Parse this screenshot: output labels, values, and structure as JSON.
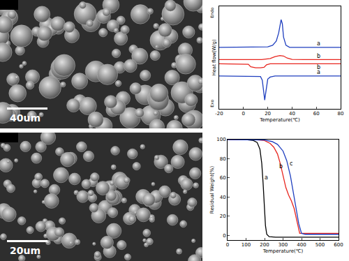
{
  "chart_data": [
    {
      "type": "line",
      "x_label": "Temperature(℃)",
      "y_label": "Heat flow(W/g)",
      "y_top_label": "Endo",
      "y_bottom_label": "Exo",
      "xlim": [
        -20,
        80
      ],
      "xticks": [
        -20,
        0,
        20,
        40,
        60,
        80
      ],
      "ylim": [
        0,
        10
      ],
      "yticks": [],
      "tick_labels": "x",
      "grid": false,
      "series": [
        {
          "color": "#1f3fbf",
          "x": [
            -20,
            0,
            10,
            20,
            24,
            27,
            29,
            30,
            31,
            32,
            33,
            35,
            38,
            45,
            60,
            80
          ],
          "values": [
            6.0,
            6.0,
            6.0,
            6.05,
            6.2,
            6.6,
            7.4,
            8.2,
            8.7,
            8.3,
            7.0,
            6.2,
            6.0,
            6.0,
            6.0,
            6.0
          ]
        },
        {
          "color": "#e8261f",
          "x": [
            -20,
            0,
            15,
            22,
            26,
            30,
            33,
            36,
            40,
            50,
            80
          ],
          "values": [
            4.8,
            4.8,
            4.8,
            4.9,
            5.1,
            5.2,
            5.15,
            4.95,
            4.82,
            4.8,
            4.8
          ]
        },
        {
          "color": "#e8261f",
          "x": [
            -20,
            0,
            4,
            6,
            10,
            14,
            17,
            19,
            22,
            40,
            80
          ],
          "values": [
            4.4,
            4.4,
            4.35,
            4.1,
            4.0,
            4.0,
            4.05,
            4.3,
            4.4,
            4.4,
            4.4
          ]
        },
        {
          "color": "#1f3fbf",
          "x": [
            -20,
            0,
            10,
            14,
            15.5,
            16.5,
            17,
            17.5,
            18,
            19,
            20,
            22,
            26,
            40,
            80
          ],
          "values": [
            3.2,
            3.2,
            3.2,
            3.15,
            2.8,
            1.8,
            1.0,
            0.85,
            1.3,
            2.3,
            2.9,
            3.1,
            3.2,
            3.2,
            3.2
          ]
        }
      ],
      "annotations": [
        {
          "text": "a",
          "x": 62,
          "y": 6.35
        },
        {
          "text": "b",
          "x": 62,
          "y": 5.15
        },
        {
          "text": "b",
          "x": 62,
          "y": 4.05
        },
        {
          "text": "a",
          "x": 62,
          "y": 3.55
        }
      ]
    },
    {
      "type": "line",
      "x_label": "Temperature(℃)",
      "y_label": "Residual Weight(%)",
      "xlim": [
        0,
        600
      ],
      "xticks": [
        0,
        100,
        200,
        300,
        400,
        500,
        600
      ],
      "ylim": [
        -5,
        100
      ],
      "yticks": [
        0,
        20,
        40,
        60,
        80,
        100
      ],
      "grid": false,
      "series": [
        {
          "color": "#000000",
          "x": [
            0,
            100,
            140,
            160,
            175,
            185,
            192,
            198,
            205,
            212,
            225,
            260,
            400,
            600
          ],
          "values": [
            100,
            100,
            99,
            97,
            90,
            75,
            55,
            30,
            10,
            1,
            -1.5,
            -2,
            -2,
            -2
          ]
        },
        {
          "color": "#e8261f",
          "x": [
            0,
            150,
            200,
            230,
            250,
            270,
            285,
            300,
            315,
            330,
            345,
            360,
            375,
            390,
            420,
            600
          ],
          "values": [
            100,
            100,
            99,
            96,
            92,
            85,
            75,
            62,
            50,
            42,
            36,
            28,
            14,
            2,
            2,
            2
          ]
        },
        {
          "color": "#1f3fbf",
          "x": [
            0,
            150,
            200,
            240,
            270,
            300,
            320,
            340,
            355,
            370,
            385,
            400,
            420,
            600
          ],
          "values": [
            100,
            100,
            99.5,
            98,
            95,
            88,
            78,
            62,
            45,
            28,
            12,
            2,
            1,
            1
          ]
        }
      ],
      "annotations": [
        {
          "text": "a",
          "x": 208,
          "y": 60
        },
        {
          "text": "b",
          "x": 290,
          "y": 72
        },
        {
          "text": "c",
          "x": 345,
          "y": 75
        }
      ]
    }
  ],
  "micrographs": [
    {
      "scale_bar": "40um"
    },
    {
      "scale_bar": "20um"
    }
  ]
}
